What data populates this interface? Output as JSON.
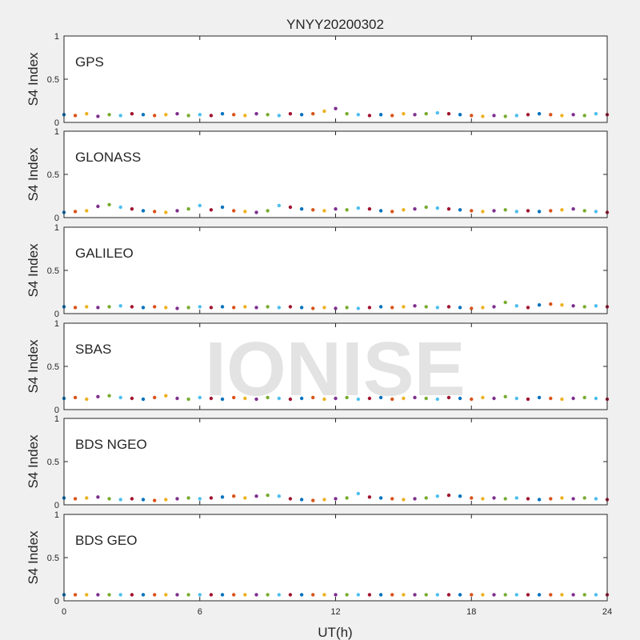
{
  "chart_data": {
    "type": "scatter",
    "title": "YNYY20200302",
    "xlabel": "UT(h)",
    "ylabel": "S4 Index",
    "xlim": [
      0,
      24
    ],
    "ylim": [
      0,
      1
    ],
    "xticks": [
      0,
      6,
      12,
      18,
      24
    ],
    "yticks": [
      0,
      0.5,
      1
    ],
    "xtick_labels": [
      "0",
      "6",
      "12",
      "18",
      "24"
    ],
    "ytick_labels": [
      "0",
      "0.5",
      "1"
    ],
    "grid": false,
    "watermark": "IONISE",
    "colors": {
      "background": "#f0f0f0",
      "axes": "#ffffff",
      "axis_line": "#262626",
      "watermark": "#e3e3e3"
    },
    "series_colors": [
      "#0072BD",
      "#D95319",
      "#EDB120",
      "#7E2F8E",
      "#77AC30",
      "#4DBEEE",
      "#A2142F"
    ],
    "panels": [
      {
        "label": "GPS",
        "points": [
          [
            0,
            0.09
          ],
          [
            0.5,
            0.08
          ],
          [
            1,
            0.1
          ],
          [
            1.5,
            0.07
          ],
          [
            2,
            0.09
          ],
          [
            2.5,
            0.08
          ],
          [
            3,
            0.1
          ],
          [
            3.5,
            0.09
          ],
          [
            4,
            0.08
          ],
          [
            4.5,
            0.09
          ],
          [
            5,
            0.1
          ],
          [
            5.5,
            0.08
          ],
          [
            6,
            0.09
          ],
          [
            6.5,
            0.08
          ],
          [
            7,
            0.1
          ],
          [
            7.5,
            0.09
          ],
          [
            8,
            0.08
          ],
          [
            8.5,
            0.1
          ],
          [
            9,
            0.09
          ],
          [
            9.5,
            0.08
          ],
          [
            10,
            0.1
          ],
          [
            10.5,
            0.09
          ],
          [
            11,
            0.1
          ],
          [
            11.5,
            0.13
          ],
          [
            12,
            0.16
          ],
          [
            12.5,
            0.1
          ],
          [
            13,
            0.09
          ],
          [
            13.5,
            0.08
          ],
          [
            14,
            0.09
          ],
          [
            14.5,
            0.08
          ],
          [
            15,
            0.1
          ],
          [
            15.5,
            0.09
          ],
          [
            16,
            0.1
          ],
          [
            16.5,
            0.11
          ],
          [
            17,
            0.1
          ],
          [
            17.5,
            0.09
          ],
          [
            18,
            0.08
          ],
          [
            18.5,
            0.07
          ],
          [
            19,
            0.08
          ],
          [
            19.5,
            0.07
          ],
          [
            20,
            0.08
          ],
          [
            20.5,
            0.09
          ],
          [
            21,
            0.1
          ],
          [
            21.5,
            0.09
          ],
          [
            22,
            0.08
          ],
          [
            22.5,
            0.09
          ],
          [
            23,
            0.08
          ],
          [
            23.5,
            0.1
          ],
          [
            24,
            0.09
          ]
        ]
      },
      {
        "label": "GLONASS",
        "points": [
          [
            0,
            0.06
          ],
          [
            0.5,
            0.07
          ],
          [
            1,
            0.08
          ],
          [
            1.5,
            0.13
          ],
          [
            2,
            0.15
          ],
          [
            2.5,
            0.12
          ],
          [
            3,
            0.1
          ],
          [
            3.5,
            0.08
          ],
          [
            4,
            0.07
          ],
          [
            4.5,
            0.06
          ],
          [
            5,
            0.08
          ],
          [
            5.5,
            0.1
          ],
          [
            6,
            0.14
          ],
          [
            6.5,
            0.09
          ],
          [
            7,
            0.12
          ],
          [
            7.5,
            0.08
          ],
          [
            8,
            0.07
          ],
          [
            8.5,
            0.06
          ],
          [
            9,
            0.08
          ],
          [
            9.5,
            0.14
          ],
          [
            10,
            0.12
          ],
          [
            10.5,
            0.1
          ],
          [
            11,
            0.09
          ],
          [
            11.5,
            0.08
          ],
          [
            12,
            0.1
          ],
          [
            12.5,
            0.09
          ],
          [
            13,
            0.11
          ],
          [
            13.5,
            0.1
          ],
          [
            14,
            0.08
          ],
          [
            14.5,
            0.07
          ],
          [
            15,
            0.09
          ],
          [
            15.5,
            0.1
          ],
          [
            16,
            0.12
          ],
          [
            16.5,
            0.11
          ],
          [
            17,
            0.1
          ],
          [
            17.5,
            0.09
          ],
          [
            18,
            0.08
          ],
          [
            18.5,
            0.07
          ],
          [
            19,
            0.08
          ],
          [
            19.5,
            0.09
          ],
          [
            20,
            0.07
          ],
          [
            20.5,
            0.08
          ],
          [
            21,
            0.07
          ],
          [
            21.5,
            0.08
          ],
          [
            22,
            0.09
          ],
          [
            22.5,
            0.1
          ],
          [
            23,
            0.08
          ],
          [
            23.5,
            0.07
          ],
          [
            24,
            0.06
          ]
        ]
      },
      {
        "label": "GALILEO",
        "points": [
          [
            0,
            0.08
          ],
          [
            0.5,
            0.07
          ],
          [
            1,
            0.08
          ],
          [
            1.5,
            0.07
          ],
          [
            2,
            0.08
          ],
          [
            2.5,
            0.09
          ],
          [
            3,
            0.08
          ],
          [
            3.5,
            0.07
          ],
          [
            4,
            0.08
          ],
          [
            4.5,
            0.07
          ],
          [
            5,
            0.06
          ],
          [
            5.5,
            0.07
          ],
          [
            6,
            0.08
          ],
          [
            6.5,
            0.07
          ],
          [
            7,
            0.08
          ],
          [
            7.5,
            0.07
          ],
          [
            8,
            0.08
          ],
          [
            8.5,
            0.07
          ],
          [
            9,
            0.08
          ],
          [
            9.5,
            0.07
          ],
          [
            10,
            0.08
          ],
          [
            10.5,
            0.07
          ],
          [
            11,
            0.06
          ],
          [
            11.5,
            0.07
          ],
          [
            12,
            0.06
          ],
          [
            12.5,
            0.07
          ],
          [
            13,
            0.06
          ],
          [
            13.5,
            0.07
          ],
          [
            14,
            0.08
          ],
          [
            14.5,
            0.07
          ],
          [
            15,
            0.08
          ],
          [
            15.5,
            0.09
          ],
          [
            16,
            0.08
          ],
          [
            16.5,
            0.07
          ],
          [
            17,
            0.08
          ],
          [
            17.5,
            0.07
          ],
          [
            18,
            0.06
          ],
          [
            18.5,
            0.07
          ],
          [
            19,
            0.08
          ],
          [
            19.5,
            0.13
          ],
          [
            20,
            0.09
          ],
          [
            20.5,
            0.07
          ],
          [
            21,
            0.1
          ],
          [
            21.5,
            0.11
          ],
          [
            22,
            0.1
          ],
          [
            22.5,
            0.09
          ],
          [
            23,
            0.08
          ],
          [
            23.5,
            0.09
          ],
          [
            24,
            0.08
          ]
        ]
      },
      {
        "label": "SBAS",
        "points": [
          [
            0,
            0.13
          ],
          [
            0.5,
            0.14
          ],
          [
            1,
            0.12
          ],
          [
            1.5,
            0.15
          ],
          [
            2,
            0.16
          ],
          [
            2.5,
            0.14
          ],
          [
            3,
            0.13
          ],
          [
            3.5,
            0.12
          ],
          [
            4,
            0.14
          ],
          [
            4.5,
            0.16
          ],
          [
            5,
            0.13
          ],
          [
            5.5,
            0.12
          ],
          [
            6,
            0.14
          ],
          [
            6.5,
            0.13
          ],
          [
            7,
            0.12
          ],
          [
            7.5,
            0.14
          ],
          [
            8,
            0.13
          ],
          [
            8.5,
            0.12
          ],
          [
            9,
            0.14
          ],
          [
            9.5,
            0.13
          ],
          [
            10,
            0.12
          ],
          [
            10.5,
            0.13
          ],
          [
            11,
            0.14
          ],
          [
            11.5,
            0.12
          ],
          [
            12,
            0.13
          ],
          [
            12.5,
            0.14
          ],
          [
            13,
            0.12
          ],
          [
            13.5,
            0.13
          ],
          [
            14,
            0.14
          ],
          [
            14.5,
            0.12
          ],
          [
            15,
            0.13
          ],
          [
            15.5,
            0.14
          ],
          [
            16,
            0.13
          ],
          [
            16.5,
            0.12
          ],
          [
            17,
            0.14
          ],
          [
            17.5,
            0.13
          ],
          [
            18,
            0.12
          ],
          [
            18.5,
            0.14
          ],
          [
            19,
            0.13
          ],
          [
            19.5,
            0.15
          ],
          [
            20,
            0.13
          ],
          [
            20.5,
            0.12
          ],
          [
            21,
            0.14
          ],
          [
            21.5,
            0.13
          ],
          [
            22,
            0.12
          ],
          [
            22.5,
            0.13
          ],
          [
            23,
            0.14
          ],
          [
            23.5,
            0.13
          ],
          [
            24,
            0.12
          ]
        ]
      },
      {
        "label": "BDS NGEO",
        "points": [
          [
            0,
            0.08
          ],
          [
            0.5,
            0.07
          ],
          [
            1,
            0.08
          ],
          [
            1.5,
            0.09
          ],
          [
            2,
            0.07
          ],
          [
            2.5,
            0.06
          ],
          [
            3,
            0.07
          ],
          [
            3.5,
            0.06
          ],
          [
            4,
            0.05
          ],
          [
            4.5,
            0.06
          ],
          [
            5,
            0.07
          ],
          [
            5.5,
            0.08
          ],
          [
            6,
            0.07
          ],
          [
            6.5,
            0.08
          ],
          [
            7,
            0.09
          ],
          [
            7.5,
            0.1
          ],
          [
            8,
            0.08
          ],
          [
            8.5,
            0.1
          ],
          [
            9,
            0.11
          ],
          [
            9.5,
            0.1
          ],
          [
            10,
            0.07
          ],
          [
            10.5,
            0.06
          ],
          [
            11,
            0.05
          ],
          [
            11.5,
            0.06
          ],
          [
            12,
            0.07
          ],
          [
            12.5,
            0.08
          ],
          [
            13,
            0.13
          ],
          [
            13.5,
            0.09
          ],
          [
            14,
            0.08
          ],
          [
            14.5,
            0.07
          ],
          [
            15,
            0.06
          ],
          [
            15.5,
            0.07
          ],
          [
            16,
            0.08
          ],
          [
            16.5,
            0.1
          ],
          [
            17,
            0.11
          ],
          [
            17.5,
            0.1
          ],
          [
            18,
            0.08
          ],
          [
            18.5,
            0.07
          ],
          [
            19,
            0.08
          ],
          [
            19.5,
            0.07
          ],
          [
            20,
            0.08
          ],
          [
            20.5,
            0.07
          ],
          [
            21,
            0.06
          ],
          [
            21.5,
            0.07
          ],
          [
            22,
            0.08
          ],
          [
            22.5,
            0.07
          ],
          [
            23,
            0.08
          ],
          [
            23.5,
            0.07
          ],
          [
            24,
            0.06
          ]
        ]
      },
      {
        "label": "BDS GEO",
        "points": [
          [
            0,
            0.07
          ],
          [
            0.5,
            0.07
          ],
          [
            1,
            0.07
          ],
          [
            1.5,
            0.07
          ],
          [
            2,
            0.07
          ],
          [
            2.5,
            0.07
          ],
          [
            3,
            0.07
          ],
          [
            3.5,
            0.07
          ],
          [
            4,
            0.07
          ],
          [
            4.5,
            0.07
          ],
          [
            5,
            0.07
          ],
          [
            5.5,
            0.07
          ],
          [
            6,
            0.07
          ],
          [
            6.5,
            0.07
          ],
          [
            7,
            0.07
          ],
          [
            7.5,
            0.07
          ],
          [
            8,
            0.07
          ],
          [
            8.5,
            0.07
          ],
          [
            9,
            0.07
          ],
          [
            9.5,
            0.07
          ],
          [
            10,
            0.07
          ],
          [
            10.5,
            0.07
          ],
          [
            11,
            0.07
          ],
          [
            11.5,
            0.07
          ],
          [
            12,
            0.07
          ],
          [
            12.5,
            0.07
          ],
          [
            13,
            0.07
          ],
          [
            13.5,
            0.07
          ],
          [
            14,
            0.07
          ],
          [
            14.5,
            0.07
          ],
          [
            15,
            0.07
          ],
          [
            15.5,
            0.07
          ],
          [
            16,
            0.07
          ],
          [
            16.5,
            0.07
          ],
          [
            17,
            0.07
          ],
          [
            17.5,
            0.07
          ],
          [
            18,
            0.07
          ],
          [
            18.5,
            0.07
          ],
          [
            19,
            0.07
          ],
          [
            19.5,
            0.07
          ],
          [
            20,
            0.07
          ],
          [
            20.5,
            0.07
          ],
          [
            21,
            0.07
          ],
          [
            21.5,
            0.07
          ],
          [
            22,
            0.07
          ],
          [
            22.5,
            0.07
          ],
          [
            23,
            0.07
          ],
          [
            23.5,
            0.07
          ],
          [
            24,
            0.07
          ]
        ]
      }
    ]
  }
}
